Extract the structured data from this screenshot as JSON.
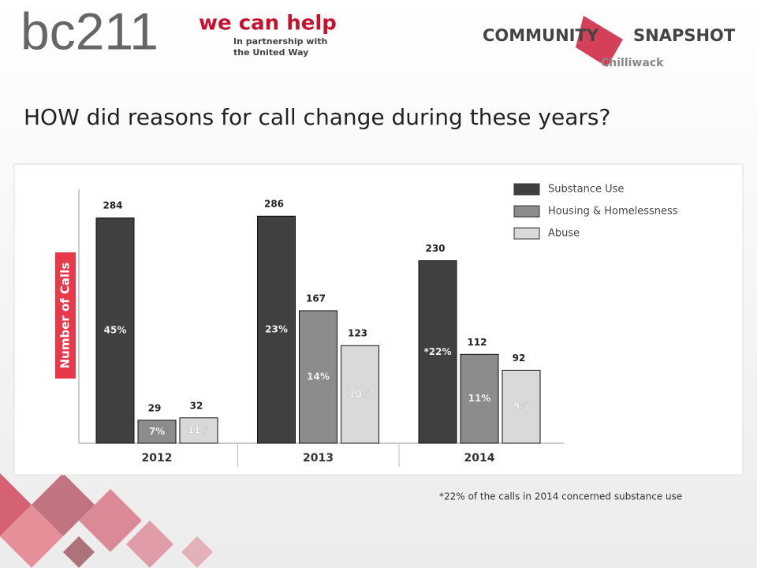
{
  "header": {
    "logo_main": "bc211",
    "tagline": "we can help",
    "partner_line1": "In partnership with",
    "partner_line2": "the United Way",
    "snapshot_left": "COMMUNITY",
    "snapshot_right": "SNAPSHOT",
    "location": "Chilliwack"
  },
  "chart_data": {
    "type": "bar",
    "title": "HOW did reasons for call change during these years?",
    "ylabel": "Number of Calls",
    "categories": [
      "2012",
      "2013",
      "2014"
    ],
    "series": [
      {
        "name": "Substance Use",
        "color": "#404040",
        "values": [
          284,
          286,
          230
        ],
        "percent_labels": [
          "45%",
          "23%",
          "*22%"
        ]
      },
      {
        "name": "Housing & Homelessness",
        "color": "#8c8c8c",
        "values": [
          29,
          167,
          112
        ],
        "percent_labels": [
          "7%",
          "14%",
          "11%"
        ]
      },
      {
        "name": "Abuse",
        "color": "#d9d9d9",
        "values": [
          32,
          123,
          92
        ],
        "percent_labels": [
          "11%",
          "10%",
          "9%"
        ]
      }
    ],
    "ylim": [
      0,
      320
    ],
    "legend": "top-right",
    "footnote": "*22% of the calls in 2014 concerned substance use"
  }
}
